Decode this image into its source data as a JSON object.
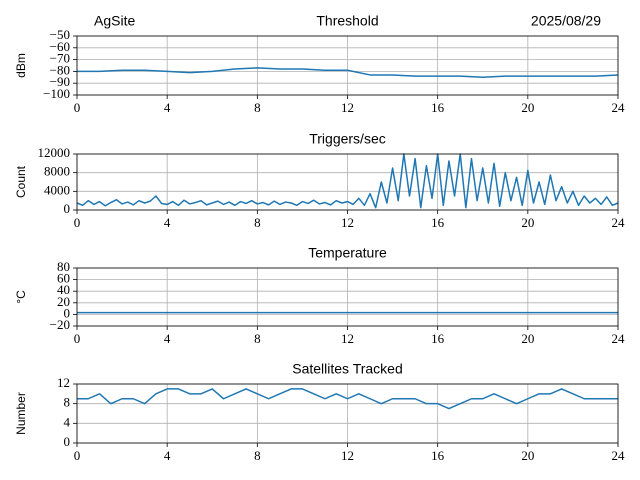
{
  "chart_data": [
    {
      "type": "line",
      "title": "Threshold",
      "left_title": "AgSite",
      "right_title": "2025/08/29",
      "ylabel": "dBm",
      "color": "#1f77b4",
      "grid": true,
      "xlim": [
        0,
        24
      ],
      "xticks": [
        0,
        4,
        8,
        12,
        16,
        20,
        24
      ],
      "ylim": [
        -100,
        -50
      ],
      "yticks": [
        {
          "value": -100,
          "label": "−100"
        },
        {
          "value": -90,
          "label": "−90"
        },
        {
          "value": -80,
          "label": "−80"
        },
        {
          "value": -70,
          "label": "−70"
        },
        {
          "value": -60,
          "label": "−60"
        },
        {
          "value": -50,
          "label": "−50"
        }
      ],
      "x": [
        0,
        1,
        2,
        3,
        4,
        5,
        6,
        7,
        8,
        9,
        10,
        11,
        12,
        13,
        14,
        15,
        16,
        17,
        18,
        19,
        20,
        21,
        22,
        23,
        24
      ],
      "values": [
        -80,
        -80,
        -79,
        -79,
        -80,
        -81,
        -80,
        -78,
        -77,
        -78,
        -78,
        -79,
        -79,
        -83,
        -83,
        -84,
        -84,
        -84,
        -85,
        -84,
        -84,
        -84,
        -84,
        -84,
        -83
      ]
    },
    {
      "type": "line",
      "title": "Triggers/sec",
      "ylabel": "Count",
      "color": "#1f77b4",
      "grid": true,
      "xlim": [
        0,
        24
      ],
      "xticks": [
        0,
        4,
        8,
        12,
        16,
        20,
        24
      ],
      "ylim": [
        0,
        12000
      ],
      "yticks": [
        0,
        4000,
        8000,
        12000
      ],
      "x": [
        0,
        0.25,
        0.5,
        0.75,
        1,
        1.25,
        1.5,
        1.75,
        2,
        2.25,
        2.5,
        2.75,
        3,
        3.25,
        3.5,
        3.75,
        4,
        4.25,
        4.5,
        4.75,
        5,
        5.25,
        5.5,
        5.75,
        6,
        6.25,
        6.5,
        6.75,
        7,
        7.25,
        7.5,
        7.75,
        8,
        8.25,
        8.5,
        8.75,
        9,
        9.25,
        9.5,
        9.75,
        10,
        10.25,
        10.5,
        10.75,
        11,
        11.25,
        11.5,
        11.75,
        12,
        12.25,
        12.5,
        12.75,
        13,
        13.25,
        13.5,
        13.75,
        14,
        14.25,
        14.5,
        14.75,
        15,
        15.25,
        15.5,
        15.75,
        16,
        16.25,
        16.5,
        16.75,
        17,
        17.25,
        17.5,
        17.75,
        18,
        18.25,
        18.5,
        18.75,
        19,
        19.25,
        19.5,
        19.75,
        20,
        20.25,
        20.5,
        20.75,
        21,
        21.25,
        21.5,
        21.75,
        22,
        22.25,
        22.5,
        22.75,
        23,
        23.25,
        23.5,
        23.75,
        24
      ],
      "values": [
        1500,
        1000,
        2000,
        1200,
        1800,
        900,
        1600,
        2200,
        1300,
        1700,
        1100,
        2000,
        1500,
        1900,
        3000,
        1400,
        1200,
        1800,
        1000,
        2100,
        1300,
        1600,
        2000,
        1100,
        1500,
        1900,
        1200,
        1700,
        1000,
        1800,
        1400,
        2000,
        1300,
        1600,
        1100,
        1900,
        1200,
        1700,
        1500,
        1000,
        1800,
        1400,
        2100,
        1300,
        1600,
        1100,
        2000,
        1500,
        1800,
        1200,
        2500,
        1000,
        3500,
        500,
        6000,
        1500,
        9000,
        2000,
        12000,
        3000,
        11000,
        500,
        9500,
        2500,
        12000,
        1000,
        10500,
        3000,
        12000,
        500,
        11000,
        2000,
        9000,
        1500,
        10000,
        800,
        8000,
        2000,
        7000,
        1000,
        8500,
        1500,
        6000,
        1200,
        7500,
        2000,
        5000,
        1500,
        4000,
        1000,
        3000,
        1500,
        2500,
        1200,
        2800,
        1000,
        1500
      ]
    },
    {
      "type": "line",
      "title": "Temperature",
      "ylabel": "°C",
      "color": "#1f77b4",
      "grid": true,
      "xlim": [
        0,
        24
      ],
      "xticks": [
        0,
        4,
        8,
        12,
        16,
        20,
        24
      ],
      "ylim": [
        -20,
        80
      ],
      "yticks": [
        {
          "value": -20,
          "label": "−20"
        },
        0,
        20,
        40,
        60,
        80
      ],
      "x": [
        0,
        24
      ],
      "values": [
        3,
        3
      ]
    },
    {
      "type": "line",
      "title": "Satellites Tracked",
      "ylabel": "Number",
      "color": "#1f77b4",
      "grid": true,
      "xlim": [
        0,
        24
      ],
      "xticks": [
        0,
        4,
        8,
        12,
        16,
        20,
        24
      ],
      "ylim": [
        0,
        12
      ],
      "yticks": [
        0,
        4,
        8,
        12
      ],
      "x": [
        0,
        0.5,
        1,
        1.5,
        2,
        2.5,
        3,
        3.5,
        4,
        4.5,
        5,
        5.5,
        6,
        6.5,
        7,
        7.5,
        8,
        8.5,
        9,
        9.5,
        10,
        10.5,
        11,
        11.5,
        12,
        12.5,
        13,
        13.5,
        14,
        14.5,
        15,
        15.5,
        16,
        16.5,
        17,
        17.5,
        18,
        18.5,
        19,
        19.5,
        20,
        20.5,
        21,
        21.5,
        22,
        22.5,
        23,
        23.5,
        24
      ],
      "values": [
        9,
        9,
        10,
        8,
        9,
        9,
        8,
        10,
        11,
        11,
        10,
        10,
        11,
        9,
        10,
        11,
        10,
        9,
        10,
        11,
        11,
        10,
        9,
        10,
        9,
        10,
        9,
        8,
        9,
        9,
        9,
        8,
        8,
        7,
        8,
        9,
        9,
        10,
        9,
        8,
        9,
        10,
        10,
        11,
        10,
        9,
        9,
        9,
        9
      ]
    }
  ]
}
